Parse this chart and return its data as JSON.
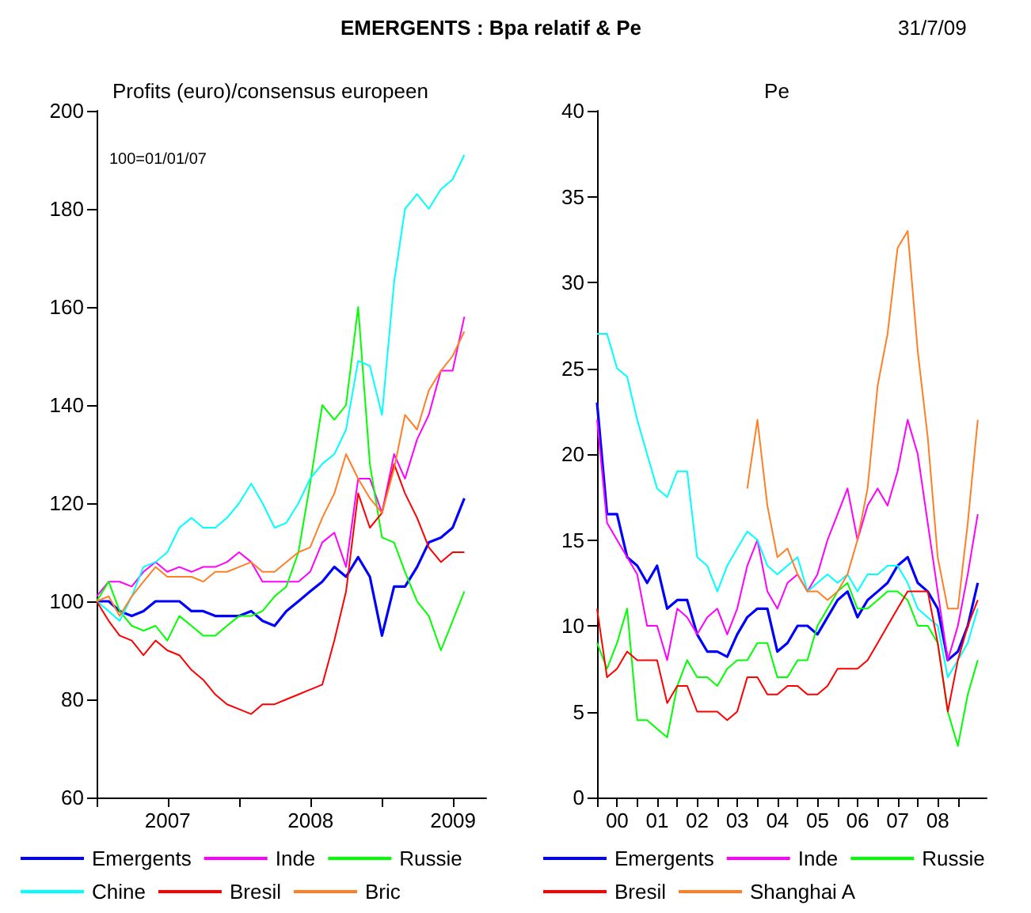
{
  "chart_data": [
    {
      "type": "line",
      "title": "EMERGENTS : Bpa relatif & Pe",
      "subtitle": "Profits (euro)/consensus europeen",
      "annotations": [
        "100=01/01/07",
        "31/7/09"
      ],
      "x": [
        "2007-01-01",
        "2007-02-01",
        "2007-03-01",
        "2007-04-01",
        "2007-05-01",
        "2007-06-01",
        "2007-07-01",
        "2007-08-01",
        "2007-09-01",
        "2007-10-01",
        "2007-11-01",
        "2007-12-01",
        "2008-01-01",
        "2008-02-01",
        "2008-03-01",
        "2008-04-01",
        "2008-05-01",
        "2008-06-01",
        "2008-07-01",
        "2008-08-01",
        "2008-09-01",
        "2008-10-01",
        "2008-11-01",
        "2008-12-01",
        "2009-01-01",
        "2009-02-01",
        "2009-03-01",
        "2009-04-01",
        "2009-05-01",
        "2009-06-01",
        "2009-07-01",
        "2009-07-31"
      ],
      "series": [
        {
          "name": "Emergents",
          "color": "#0000ff",
          "values": [
            100,
            100,
            98,
            97,
            98,
            100,
            100,
            100,
            98,
            98,
            97,
            97,
            97,
            98,
            96,
            95,
            98,
            100,
            102,
            104,
            107,
            105,
            109,
            105,
            93,
            103,
            103,
            107,
            112,
            113,
            115,
            121
          ]
        },
        {
          "name": "Inde",
          "color": "#ff00ff",
          "values": [
            101,
            104,
            104,
            103,
            106,
            108,
            106,
            107,
            106,
            107,
            107,
            108,
            110,
            108,
            104,
            104,
            104,
            104,
            106,
            112,
            114,
            107,
            125,
            125,
            118,
            130,
            125,
            133,
            138,
            147,
            147,
            158
          ]
        },
        {
          "name": "Russie",
          "color": "#00ff00",
          "values": [
            100,
            104,
            98,
            95,
            94,
            95,
            92,
            97,
            95,
            93,
            93,
            95,
            97,
            97,
            98,
            101,
            103,
            110,
            124,
            140,
            137,
            140,
            160,
            128,
            113,
            112,
            106,
            100,
            97,
            90,
            96,
            102
          ]
        },
        {
          "name": "Chine",
          "color": "#00ffff",
          "values": [
            100,
            98,
            96,
            101,
            107,
            108,
            110,
            115,
            117,
            115,
            115,
            117,
            120,
            124,
            120,
            115,
            116,
            120,
            125,
            128,
            130,
            135,
            149,
            148,
            138,
            165,
            180,
            183,
            180,
            184,
            186,
            191
          ]
        },
        {
          "name": "Bresil",
          "color": "#ff0000",
          "values": [
            100,
            96,
            93,
            92,
            89,
            92,
            90,
            89,
            86,
            84,
            81,
            79,
            78,
            77,
            79,
            79,
            80,
            81,
            82,
            83,
            92,
            102,
            122,
            115,
            118,
            128,
            122,
            117,
            111,
            108,
            110,
            110
          ]
        },
        {
          "name": "Bric",
          "color": "#ff7f27",
          "values": [
            100,
            101,
            97,
            101,
            104,
            107,
            105,
            105,
            105,
            104,
            106,
            106,
            107,
            108,
            106,
            106,
            108,
            110,
            111,
            117,
            122,
            130,
            125,
            121,
            118,
            127,
            138,
            135,
            143,
            147,
            150,
            155
          ]
        }
      ],
      "xlim": [
        "2007-01-01",
        "2009-09-25"
      ],
      "xticks": [
        {
          "value": "2007-01-01",
          "label": null
        },
        {
          "value": "2007-07-02",
          "label": "2007"
        },
        {
          "value": "2008-01-01",
          "label": null
        },
        {
          "value": "2008-07-02",
          "label": "2008"
        },
        {
          "value": "2009-01-01",
          "label": null
        },
        {
          "value": "2009-07-02",
          "label": "2009"
        }
      ],
      "ylim": [
        60,
        200
      ],
      "yticks": [
        60,
        80,
        100,
        120,
        140,
        160,
        180,
        200
      ],
      "grid": false,
      "legend": "bottom",
      "marker": "none",
      "line_style": "solid"
    },
    {
      "type": "line",
      "title": "Pe",
      "x": [
        "2000-01",
        "2000-04",
        "2000-07",
        "2000-10",
        "2001-01",
        "2001-04",
        "2001-07",
        "2001-10",
        "2002-01",
        "2002-04",
        "2002-07",
        "2002-10",
        "2003-01",
        "2003-04",
        "2003-07",
        "2003-10",
        "2004-01",
        "2004-04",
        "2004-07",
        "2004-10",
        "2005-01",
        "2005-04",
        "2005-07",
        "2005-10",
        "2006-01",
        "2006-04",
        "2006-07",
        "2006-10",
        "2007-01",
        "2007-04",
        "2007-07",
        "2007-10",
        "2008-01",
        "2008-04",
        "2008-07",
        "2008-10",
        "2009-01",
        "2009-04",
        "2009-07"
      ],
      "series": [
        {
          "name": "Emergents",
          "color": "#0000ff",
          "values": [
            23,
            16.5,
            16.5,
            14,
            13.5,
            12.5,
            13.5,
            11,
            11.5,
            11.5,
            9.5,
            8.5,
            8.5,
            8.2,
            9.5,
            10.5,
            11,
            11,
            8.5,
            9,
            10,
            10,
            9.5,
            10.5,
            11.5,
            12,
            10.5,
            11.5,
            12,
            12.5,
            13.5,
            14,
            12.5,
            12,
            11,
            8,
            8.5,
            10,
            12.5
          ]
        },
        {
          "name": "Inde",
          "color": "#ff00ff",
          "values": [
            22,
            16,
            15,
            14,
            13,
            10,
            10,
            8,
            11,
            10.5,
            9.5,
            10.5,
            11,
            9.5,
            11,
            13.5,
            15,
            12,
            11,
            12.5,
            13,
            12,
            13,
            15,
            16.5,
            18,
            15,
            17,
            18,
            17,
            19,
            22,
            20,
            16,
            12,
            8,
            10,
            13,
            16.5
          ]
        },
        {
          "name": "Russie",
          "color": "#00ff00",
          "values": [
            9,
            7.5,
            9,
            11,
            4.5,
            4.5,
            4,
            3.5,
            6.5,
            8,
            7,
            7,
            6.5,
            7.5,
            8,
            8,
            9,
            9,
            7,
            7,
            8,
            8,
            10,
            11,
            12,
            12.5,
            11,
            11,
            11.5,
            12,
            12,
            11.5,
            10,
            10,
            9,
            5,
            3,
            6,
            8
          ]
        },
        {
          "color": "#00ffff",
          "values": [
            27,
            27,
            25,
            24.5,
            22,
            20,
            18,
            17.5,
            19,
            19,
            14,
            13.5,
            12,
            13.5,
            14.5,
            15.5,
            15,
            13.5,
            13,
            13.5,
            14,
            12,
            12.5,
            13,
            12.5,
            13,
            12,
            13,
            13,
            13.5,
            13.5,
            12.5,
            11,
            10.5,
            10,
            7,
            8,
            9,
            11
          ]
        },
        {
          "name": "Bresil",
          "color": "#ff0000",
          "values": [
            11,
            7,
            7.5,
            8.5,
            8,
            8,
            8,
            5.5,
            6.5,
            6.5,
            5,
            5,
            5,
            4.5,
            5,
            7,
            7,
            6,
            6,
            6.5,
            6.5,
            6,
            6,
            6.5,
            7.5,
            7.5,
            7.5,
            8,
            9,
            10,
            11,
            12,
            12,
            12,
            9,
            5,
            8,
            10,
            11.5
          ]
        },
        {
          "name": "Shanghai A",
          "color": "#ff7f27",
          "values": [
            null,
            null,
            null,
            null,
            null,
            null,
            null,
            null,
            null,
            null,
            null,
            null,
            null,
            null,
            null,
            18,
            22,
            17,
            14,
            14.5,
            13,
            12,
            12,
            11.5,
            12,
            13,
            15,
            18,
            24,
            27,
            32,
            33,
            26,
            21,
            14,
            11,
            11,
            16,
            22
          ]
        }
      ],
      "xlim": [
        "2000-01-01",
        "2009-09-20"
      ],
      "xticks": [
        {
          "value": "2000-01-01",
          "label": null
        },
        {
          "value": "2000-07-02",
          "label": "00"
        },
        {
          "value": "2001-01-01",
          "label": null
        },
        {
          "value": "2001-07-02",
          "label": "01"
        },
        {
          "value": "2002-01-01",
          "label": null
        },
        {
          "value": "2002-07-02",
          "label": "02"
        },
        {
          "value": "2003-01-01",
          "label": null
        },
        {
          "value": "2003-07-02",
          "label": "03"
        },
        {
          "value": "2004-01-01",
          "label": null
        },
        {
          "value": "2004-07-02",
          "label": "04"
        },
        {
          "value": "2005-01-01",
          "label": null
        },
        {
          "value": "2005-07-02",
          "label": "05"
        },
        {
          "value": "2006-01-01",
          "label": null
        },
        {
          "value": "2006-07-02",
          "label": "06"
        },
        {
          "value": "2007-01-01",
          "label": null
        },
        {
          "value": "2007-07-02",
          "label": "07"
        },
        {
          "value": "2008-01-01",
          "label": null
        },
        {
          "value": "2008-07-02",
          "label": "08"
        },
        {
          "value": "2009-01-01",
          "label": null
        }
      ],
      "ylim": [
        0,
        40
      ],
      "yticks": [
        0,
        5,
        10,
        15,
        20,
        25,
        30,
        35,
        40
      ],
      "grid": false,
      "legend": "bottom",
      "marker": "none",
      "line_style": "solid"
    }
  ]
}
